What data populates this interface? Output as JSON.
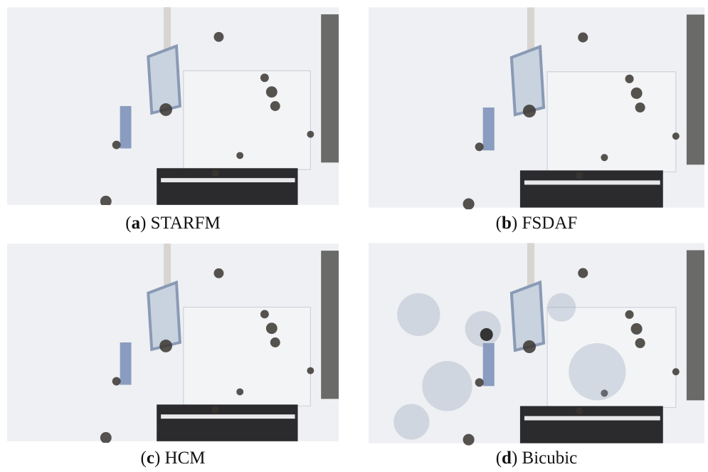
{
  "figure": {
    "panels": [
      {
        "caption": [
          "(",
          "a",
          ") STARFM"
        ]
      },
      {
        "caption": [
          "(",
          "b",
          ") FSDAF"
        ]
      },
      {
        "caption": [
          "(",
          "c",
          ") HCM"
        ]
      },
      {
        "caption": [
          "(",
          "d",
          ") Bicubic"
        ]
      }
    ]
  }
}
